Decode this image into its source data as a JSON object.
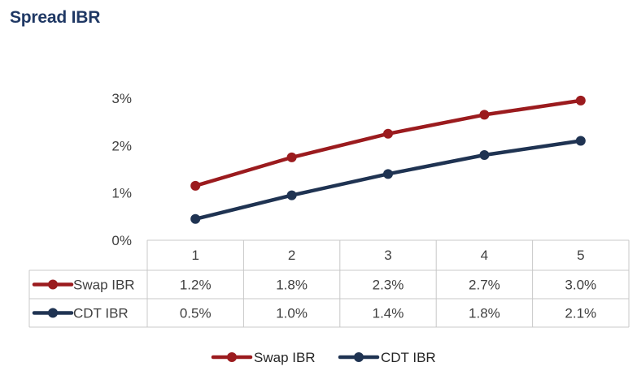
{
  "chart_data": {
    "type": "line",
    "title": "Spread IBR",
    "categories": [
      "1",
      "2",
      "3",
      "4",
      "5"
    ],
    "yticks": [
      "0%",
      "1%",
      "2%",
      "3%"
    ],
    "ylim": [
      0,
      3
    ],
    "grid": false,
    "legend_position": "bottom",
    "data_table": true,
    "series": [
      {
        "name": "Swap IBR",
        "color": "#9b1b1e",
        "values": [
          1.15,
          1.75,
          2.25,
          2.65,
          2.95
        ],
        "labels": [
          "1.2%",
          "1.8%",
          "2.3%",
          "2.7%",
          "3.0%"
        ]
      },
      {
        "name": "CDT IBR",
        "color": "#1f3352",
        "values": [
          0.45,
          0.95,
          1.4,
          1.8,
          2.1
        ],
        "labels": [
          "0.5%",
          "1.0%",
          "1.4%",
          "1.8%",
          "2.1%"
        ]
      }
    ]
  }
}
